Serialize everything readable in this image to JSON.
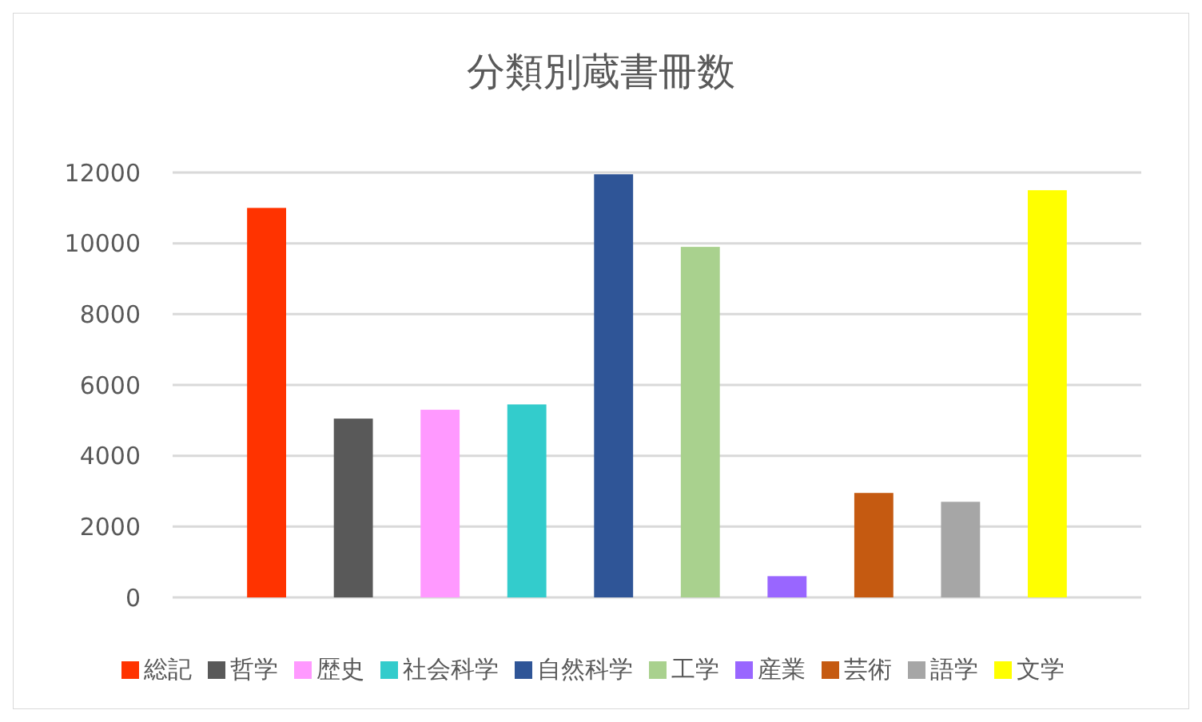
{
  "chart_data": {
    "type": "bar",
    "title": "分類別蔵書冊数",
    "categories": [
      null
    ],
    "series": [
      {
        "name": "総記",
        "color": "#ff3300",
        "values": [
          11000
        ]
      },
      {
        "name": "哲学",
        "color": "#595959",
        "values": [
          5050
        ]
      },
      {
        "name": "歴史",
        "color": "#ff99ff",
        "values": [
          5300
        ]
      },
      {
        "name": "社会科学",
        "color": "#33cccc",
        "values": [
          5450
        ]
      },
      {
        "name": "自然科学",
        "color": "#2f5597",
        "values": [
          11950
        ]
      },
      {
        "name": "工学",
        "color": "#a9d18e",
        "values": [
          9900
        ]
      },
      {
        "name": "産業",
        "color": "#9966ff",
        "values": [
          600
        ]
      },
      {
        "name": "芸術",
        "color": "#c55a11",
        "values": [
          2950
        ]
      },
      {
        "name": "語学",
        "color": "#a6a6a6",
        "values": [
          2700
        ]
      },
      {
        "name": "文学",
        "color": "#ffff00",
        "values": [
          11500
        ]
      }
    ],
    "ylim": [
      0,
      12000
    ],
    "yticks": [
      0,
      2000,
      4000,
      6000,
      8000,
      10000,
      12000
    ],
    "grid": "y",
    "legend": "bottom",
    "tick_labels": "y"
  }
}
